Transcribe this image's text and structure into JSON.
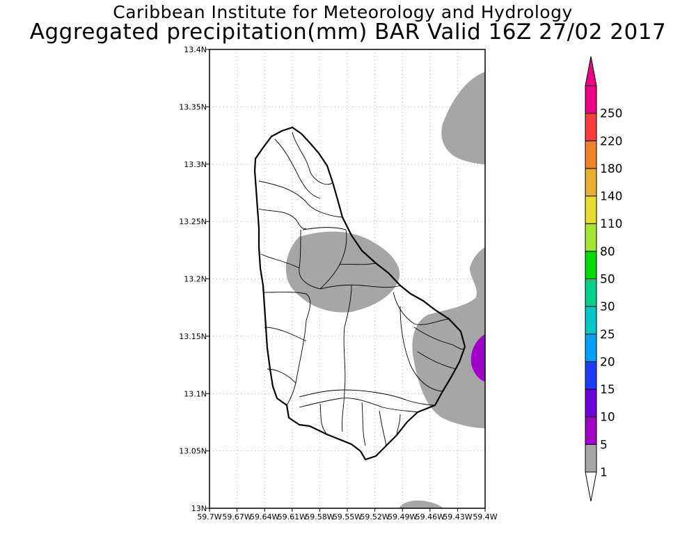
{
  "header": {
    "institution": "Caribbean Institute for Meteorology and Hydrology",
    "product": "Aggregated precipitation(mm) BAR Valid 16Z 27/02 2017"
  },
  "map": {
    "region": "Barbados",
    "lat_range": [
      13.0,
      13.4
    ],
    "lon_range": [
      -59.7,
      -59.4
    ],
    "lat_ticks": [
      "13N",
      "13.05N",
      "13.1N",
      "13.15N",
      "13.2N",
      "13.25N",
      "13.3N",
      "13.35N",
      "13.4N"
    ],
    "lon_ticks": [
      "59.7W",
      "59.67W",
      "59.64W",
      "59.61W",
      "59.58W",
      "59.55W",
      "59.52W",
      "59.49W",
      "59.46W",
      "59.43W",
      "59.4W"
    ],
    "grid": "dotted",
    "shaded_classes": [
      {
        "class": "1-5 mm",
        "color": "#a6a6a6"
      },
      {
        "class": "5-10 mm",
        "color": "#a000c8"
      }
    ]
  },
  "colorbar": {
    "levels": [
      "1",
      "5",
      "10",
      "15",
      "20",
      "25",
      "30",
      "50",
      "80",
      "110",
      "140",
      "180",
      "220",
      "250"
    ],
    "colors": [
      "#a6a6a6",
      "#a000c8",
      "#6e00dc",
      "#1e3cff",
      "#00a0ff",
      "#00c8c8",
      "#00d28c",
      "#00dc00",
      "#a0e632",
      "#e6dc32",
      "#e6af2d",
      "#f08228",
      "#fa3c3c",
      "#f00082"
    ],
    "bottom_arrow_color": "#ffffff",
    "top_arrow_color": "#f00082"
  },
  "colors": {
    "background": "#ffffff",
    "land_outline": "#000000",
    "grid": "#b4b4b4"
  }
}
